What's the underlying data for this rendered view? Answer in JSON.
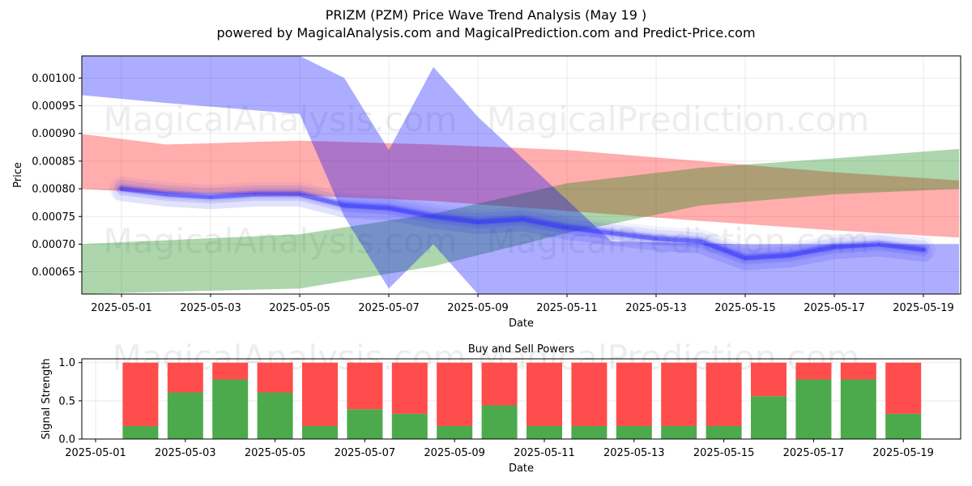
{
  "title": "PRIZM (PZM) Price Wave Trend Analysis (May 19 )",
  "subtitle": "powered by MagicalAnalysis.com and MagicalPrediction.com and Predict-Price.com",
  "watermarks": {
    "top_left": "MagicalAnalysis.com",
    "top_right": "MagicalPrediction.com",
    "mid_left": "MagicalAnalysis.com",
    "mid_right": "MagicalPrediction.com",
    "bottom": "MagicalAnalysis.com   MagicalPrediction.com"
  },
  "chart_data": [
    {
      "type": "area",
      "xlabel": "Date",
      "ylabel": "Price",
      "x_range": [
        "2025-04-30",
        "2025-05-20"
      ],
      "ylim": [
        0.00061,
        0.00104
      ],
      "y_ticks": [
        0.00065,
        0.0007,
        0.00075,
        0.0008,
        0.00085,
        0.0009,
        0.00095,
        0.001
      ],
      "y_tick_labels": [
        "0.00065",
        "0.00070",
        "0.00075",
        "0.00080",
        "0.00085",
        "0.00090",
        "0.00095",
        "0.00100"
      ],
      "x_ticks": [
        "2025-05-01",
        "2025-05-03",
        "2025-05-05",
        "2025-05-07",
        "2025-05-09",
        "2025-05-11",
        "2025-05-13",
        "2025-05-15",
        "2025-05-17",
        "2025-05-19"
      ],
      "grid": true,
      "bands": [
        {
          "color": "#ff0000",
          "opacity": 0.32,
          "x": [
            "2025-04-30",
            "2025-05-02",
            "2025-05-05",
            "2025-05-08",
            "2025-05-11",
            "2025-05-14",
            "2025-05-17",
            "2025-05-19.8"
          ],
          "upper": [
            0.0009,
            0.00088,
            0.000887,
            0.00088,
            0.00087,
            0.00085,
            0.00083,
            0.000815
          ],
          "lower": [
            0.0008,
            0.000792,
            0.000788,
            0.000778,
            0.00076,
            0.000742,
            0.000725,
            0.000712
          ]
        },
        {
          "color": "#008000",
          "opacity": 0.32,
          "x": [
            "2025-04-30",
            "2025-05-05",
            "2025-05-08",
            "2025-05-11",
            "2025-05-14",
            "2025-05-17",
            "2025-05-19.8"
          ],
          "upper": [
            0.0007,
            0.000718,
            0.000755,
            0.00081,
            0.000838,
            0.000855,
            0.000872
          ],
          "lower": [
            0.00061,
            0.00062,
            0.00066,
            0.00072,
            0.00077,
            0.00079,
            0.0008
          ]
        },
        {
          "color": "#0000ff",
          "opacity": 0.32,
          "x": [
            "2025-04-30",
            "2025-05-02",
            "2025-05-05",
            "2025-05-06",
            "2025-05-07",
            "2025-05-08",
            "2025-05-09",
            "2025-05-12",
            "2025-05-15",
            "2025-05-19.8"
          ],
          "upper": [
            0.00105,
            0.00104,
            0.00104,
            0.001,
            0.00087,
            0.00102,
            0.00093,
            0.000705,
            0.0007,
            0.0007
          ],
          "lower": [
            0.00097,
            0.000955,
            0.000935,
            0.00075,
            0.00062,
            0.0007,
            0.00061,
            0.00061,
            0.00061,
            0.00061
          ]
        }
      ],
      "series": [
        {
          "color": "#2a2af0",
          "x": [
            "2025-05-01",
            "2025-05-02",
            "2025-05-03",
            "2025-05-04",
            "2025-05-05",
            "2025-05-06",
            "2025-05-07",
            "2025-05-08",
            "2025-05-09",
            "2025-05-10",
            "2025-05-11",
            "2025-05-12",
            "2025-05-13",
            "2025-05-14",
            "2025-05-15",
            "2025-05-16",
            "2025-05-17",
            "2025-05-18",
            "2025-05-19"
          ],
          "y": [
            0.0008,
            0.00079,
            0.000785,
            0.00079,
            0.00079,
            0.00077,
            0.000765,
            0.00075,
            0.00074,
            0.000745,
            0.00073,
            0.00072,
            0.00071,
            0.000705,
            0.000675,
            0.00068,
            0.000695,
            0.0007,
            0.00069
          ]
        }
      ]
    },
    {
      "type": "bar",
      "title": "Buy and Sell Powers",
      "xlabel": "Date",
      "ylabel": "Signal Strength",
      "ylim": [
        0,
        1.05
      ],
      "y_ticks": [
        0.0,
        0.5,
        1.0
      ],
      "y_tick_labels": [
        "0.0",
        "0.5",
        "1.0"
      ],
      "x_ticks": [
        "2025-05-01",
        "2025-05-03",
        "2025-05-05",
        "2025-05-07",
        "2025-05-09",
        "2025-05-11",
        "2025-05-13",
        "2025-05-15",
        "2025-05-17",
        "2025-05-19"
      ],
      "categories": [
        "2025-05-02",
        "2025-05-03",
        "2025-05-04",
        "2025-05-05",
        "2025-05-06",
        "2025-05-07",
        "2025-05-08",
        "2025-05-09",
        "2025-05-10",
        "2025-05-11",
        "2025-05-12",
        "2025-05-13",
        "2025-05-14",
        "2025-05-15",
        "2025-05-16",
        "2025-05-17",
        "2025-05-18",
        "2025-05-19"
      ],
      "series": [
        {
          "color": "#4caa4c",
          "values": [
            0.17,
            0.61,
            0.78,
            0.61,
            0.17,
            0.39,
            0.33,
            0.17,
            0.44,
            0.17,
            0.17,
            0.17,
            0.17,
            0.17,
            0.56,
            0.78,
            0.78,
            0.33
          ]
        },
        {
          "color": "#ff4c4c",
          "values": [
            0.83,
            0.39,
            0.22,
            0.39,
            0.83,
            0.61,
            0.67,
            0.83,
            0.56,
            0.83,
            0.83,
            0.83,
            0.83,
            0.83,
            0.44,
            0.22,
            0.22,
            0.67
          ]
        }
      ],
      "grid": true
    }
  ]
}
